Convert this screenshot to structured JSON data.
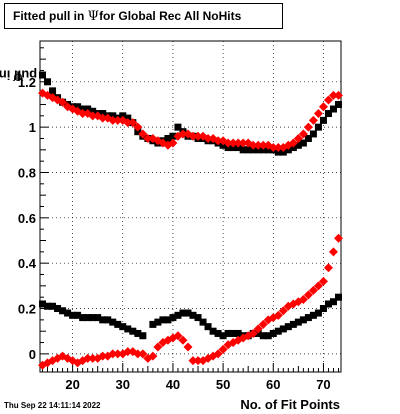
{
  "title": {
    "prefix": "Fitted pull in ",
    "symbol": "Ψ",
    "suffix": "for Global Rec All NoHits"
  },
  "ylabel": {
    "text": "pull in ",
    "symbol": "Ψ"
  },
  "xlabel": "No. of Fit Points",
  "footer": "Thu Sep 22 14:11:14 2022",
  "colors": {
    "series_black": "#000000",
    "series_red": "#ff0000"
  },
  "chart_data": {
    "type": "scatter",
    "xlim": [
      13.5,
      73.5
    ],
    "ylim": [
      -0.08,
      1.38
    ],
    "x_ticks": [
      20,
      30,
      40,
      50,
      60,
      70
    ],
    "y_ticks": [
      0,
      0.2,
      0.4,
      0.6,
      0.8,
      1,
      1.2
    ],
    "y_tick_labels": [
      "0",
      "0.2",
      "0.4",
      "0.6",
      "0.8",
      "1",
      "1.2"
    ],
    "grid": true,
    "x": [
      14,
      15,
      16,
      17,
      18,
      19,
      20,
      21,
      22,
      23,
      24,
      25,
      26,
      27,
      28,
      29,
      30,
      31,
      32,
      33,
      34,
      35,
      36,
      37,
      38,
      39,
      40,
      41,
      42,
      43,
      44,
      45,
      46,
      47,
      48,
      49,
      50,
      51,
      52,
      53,
      54,
      55,
      56,
      57,
      58,
      59,
      60,
      61,
      62,
      63,
      64,
      65,
      66,
      67,
      68,
      69,
      70,
      71,
      72,
      73
    ],
    "series": [
      {
        "marker": "square",
        "color": "#000000",
        "values": [
          1.23,
          1.2,
          1.16,
          1.13,
          1.11,
          1.1,
          1.09,
          1.09,
          1.08,
          1.08,
          1.07,
          1.06,
          1.06,
          1.05,
          1.05,
          1.04,
          1.05,
          1.04,
          1.02,
          0.98,
          0.96,
          0.95,
          0.94,
          0.93,
          0.94,
          0.95,
          0.96,
          1.0,
          0.98,
          0.96,
          0.96,
          0.95,
          0.95,
          0.94,
          0.94,
          0.93,
          0.92,
          0.91,
          0.91,
          0.91,
          0.9,
          0.9,
          0.9,
          0.9,
          0.9,
          0.9,
          0.9,
          0.89,
          0.89,
          0.9,
          0.91,
          0.92,
          0.93,
          0.95,
          0.97,
          1.0,
          1.03,
          1.06,
          1.08,
          1.1
        ]
      },
      {
        "marker": "diamond",
        "color": "#ff0000",
        "values": [
          1.15,
          1.14,
          1.13,
          1.12,
          1.11,
          1.09,
          1.08,
          1.07,
          1.06,
          1.06,
          1.05,
          1.05,
          1.04,
          1.04,
          1.03,
          1.03,
          1.03,
          1.02,
          1.02,
          1.0,
          0.97,
          0.95,
          0.95,
          0.94,
          0.93,
          0.92,
          0.93,
          0.96,
          0.97,
          0.97,
          0.96,
          0.96,
          0.96,
          0.95,
          0.95,
          0.94,
          0.94,
          0.93,
          0.93,
          0.93,
          0.93,
          0.93,
          0.92,
          0.92,
          0.92,
          0.92,
          0.91,
          0.91,
          0.91,
          0.92,
          0.93,
          0.95,
          0.97,
          1.0,
          1.03,
          1.06,
          1.09,
          1.12,
          1.14,
          1.14
        ]
      },
      {
        "marker": "square",
        "color": "#000000",
        "values": [
          0.22,
          0.21,
          0.21,
          0.2,
          0.19,
          0.18,
          0.17,
          0.17,
          0.16,
          0.16,
          0.16,
          0.16,
          0.15,
          0.15,
          0.14,
          0.13,
          0.12,
          0.11,
          0.1,
          0.09,
          0.08,
          null,
          0.13,
          0.14,
          0.15,
          0.15,
          0.16,
          0.17,
          0.18,
          0.18,
          0.17,
          0.16,
          0.14,
          0.12,
          0.1,
          0.09,
          0.08,
          0.09,
          0.09,
          0.09,
          0.08,
          0.08,
          0.09,
          0.09,
          0.08,
          0.08,
          0.09,
          0.1,
          0.11,
          0.12,
          0.13,
          0.14,
          0.15,
          0.16,
          0.17,
          0.18,
          0.2,
          0.22,
          0.23,
          0.25
        ]
      },
      {
        "marker": "diamond",
        "color": "#ff0000",
        "values": [
          -0.05,
          -0.04,
          -0.03,
          -0.02,
          -0.01,
          -0.02,
          -0.03,
          -0.04,
          -0.03,
          -0.02,
          -0.02,
          -0.02,
          -0.01,
          -0.01,
          0.0,
          0.0,
          0.0,
          0.01,
          0.01,
          0.0,
          0.0,
          -0.02,
          -0.01,
          0.03,
          0.05,
          0.06,
          0.07,
          0.08,
          0.06,
          0.03,
          -0.03,
          -0.03,
          -0.03,
          -0.02,
          -0.01,
          0.0,
          0.02,
          0.04,
          0.05,
          0.06,
          0.07,
          0.08,
          0.09,
          0.11,
          0.13,
          0.15,
          0.16,
          0.17,
          0.19,
          0.21,
          0.22,
          0.23,
          0.24,
          0.26,
          0.28,
          0.3,
          0.32,
          0.38,
          0.45,
          0.51
        ]
      }
    ]
  }
}
